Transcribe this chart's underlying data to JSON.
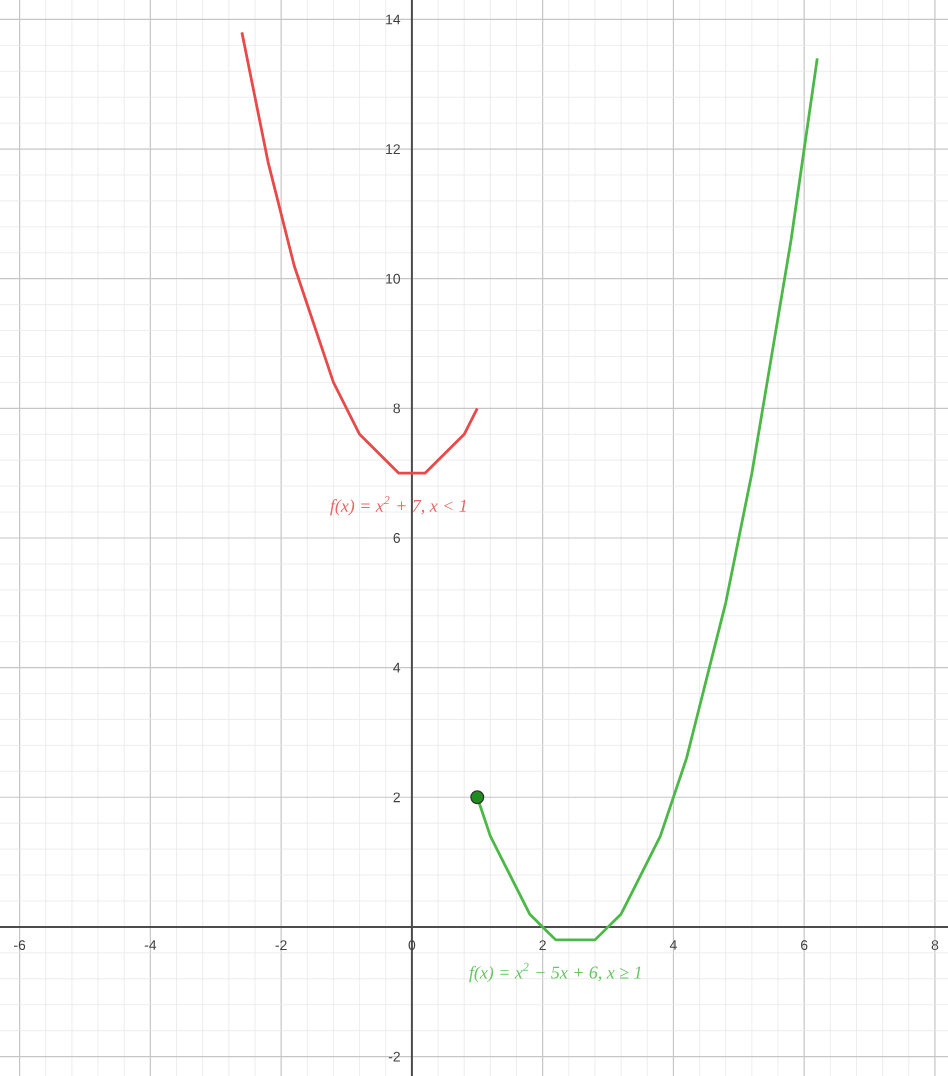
{
  "chart_data": {
    "type": "line",
    "xlim": [
      -6.3,
      8.2
    ],
    "ylim": [
      -2.3,
      14.3
    ],
    "xticks": [
      -6,
      -4,
      -2,
      0,
      2,
      4,
      6,
      8
    ],
    "yticks": [
      -2,
      {
        "value": 0,
        "label": null
      },
      2,
      4,
      6,
      8,
      10,
      12,
      14
    ],
    "grid": true,
    "marker": "none",
    "series": [
      {
        "name": "f(x) = x$^{2}$ + 7, x < 1",
        "color": "#e84a4a",
        "x": [
          -2.6,
          -2.4,
          -2.2,
          -2.0,
          -1.8,
          -1.6,
          -1.4,
          -1.2,
          -1.0,
          -0.8,
          -0.6,
          -0.4,
          -0.2,
          0.0,
          0.2,
          0.4,
          0.6,
          0.8,
          1.0
        ],
        "values": [
          13.8,
          12.8,
          11.8,
          11.0,
          10.2,
          9.6,
          9.0,
          8.4,
          8.0,
          7.6,
          7.4,
          7.2,
          7.0,
          7.0,
          7.0,
          7.2,
          7.4,
          7.6,
          8.0
        ]
      },
      {
        "name": "f(x) = x$^{2}$ − 5x + 6, x ≥ 1",
        "color": "#4cb848",
        "x": [
          1.0,
          1.2,
          1.4,
          1.6,
          1.8,
          2.0,
          2.2,
          2.4,
          2.6,
          2.8,
          3.0,
          3.2,
          3.4,
          3.6,
          3.8,
          4.0,
          4.2,
          4.4,
          4.6,
          4.8,
          5.0,
          5.2,
          5.4,
          5.6,
          5.8,
          6.0,
          6.2
        ],
        "values": [
          2.0,
          1.4,
          1.0,
          0.6,
          0.2,
          0.0,
          -0.2,
          -0.2,
          -0.2,
          -0.2,
          0.0,
          0.2,
          0.6,
          1.0,
          1.4,
          2.0,
          2.6,
          3.4,
          4.2,
          5.0,
          6.0,
          7.0,
          8.2,
          9.4,
          10.6,
          12.0,
          13.4
        ]
      },
      {
        "type": "scatter",
        "marker": "circle",
        "color": "#1e8c1e",
        "x": [
          1.0
        ],
        "values": [
          2.0
        ]
      }
    ]
  }
}
